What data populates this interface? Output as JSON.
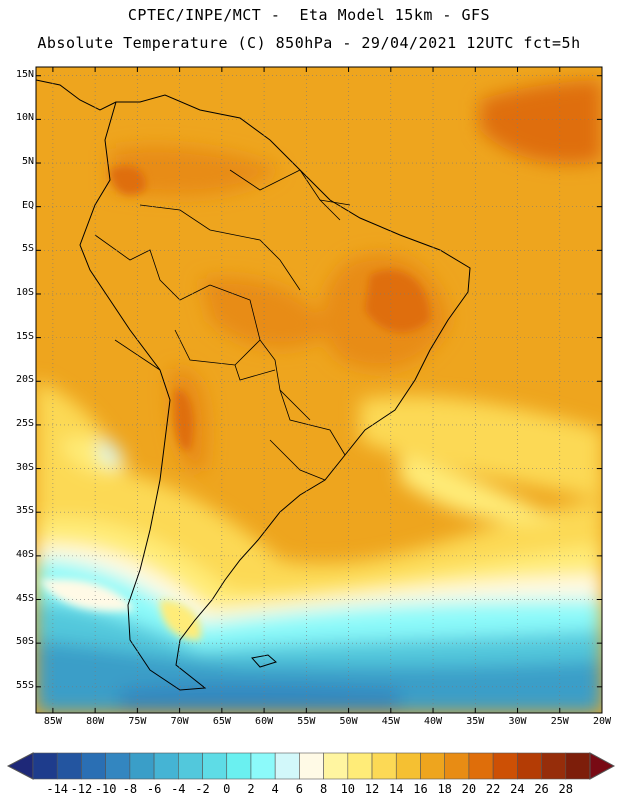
{
  "header": {
    "line1": "CPTEC/INPE/MCT -  Eta Model 15km - GFS",
    "line2": "Absolute Temperature (C) 850hPa - 29/04/2021 12UTC fct=5h"
  },
  "map": {
    "lat_labels": [
      "15N",
      "10N",
      "5N",
      "EQ",
      "5S",
      "10S",
      "15S",
      "20S",
      "25S",
      "30S",
      "35S",
      "40S",
      "45S",
      "50S",
      "55S"
    ],
    "lon_labels": [
      "85W",
      "80W",
      "75W",
      "70W",
      "65W",
      "60W",
      "55W",
      "50W",
      "45W",
      "40W",
      "35W",
      "30W",
      "25W",
      "20W"
    ],
    "extent": {
      "lon_min": -87,
      "lon_max": -20,
      "lat_min": -58,
      "lat_max": 16
    }
  },
  "colorbar": {
    "labels": [
      "-14",
      "-12",
      "-10",
      "-8",
      "-6",
      "-4",
      "-2",
      "0",
      "2",
      "4",
      "6",
      "8",
      "10",
      "12",
      "14",
      "16",
      "18",
      "20",
      "22",
      "24",
      "26",
      "28"
    ],
    "colors": [
      "#1e3c8c",
      "#2355a0",
      "#2a6fb4",
      "#3386c0",
      "#3a9ec8",
      "#45b4d4",
      "#52c8dc",
      "#5edce6",
      "#6af0f0",
      "#8cfafa",
      "#d2f8fa",
      "#fffae6",
      "#fff5a0",
      "#ffec78",
      "#fcd955",
      "#f5c032",
      "#eea51e",
      "#e88c14",
      "#df6e0a",
      "#cd5005",
      "#b43c05",
      "#962d0a",
      "#7d1e0a"
    ],
    "under_color": "#1e2878",
    "over_color": "#780a14"
  }
}
